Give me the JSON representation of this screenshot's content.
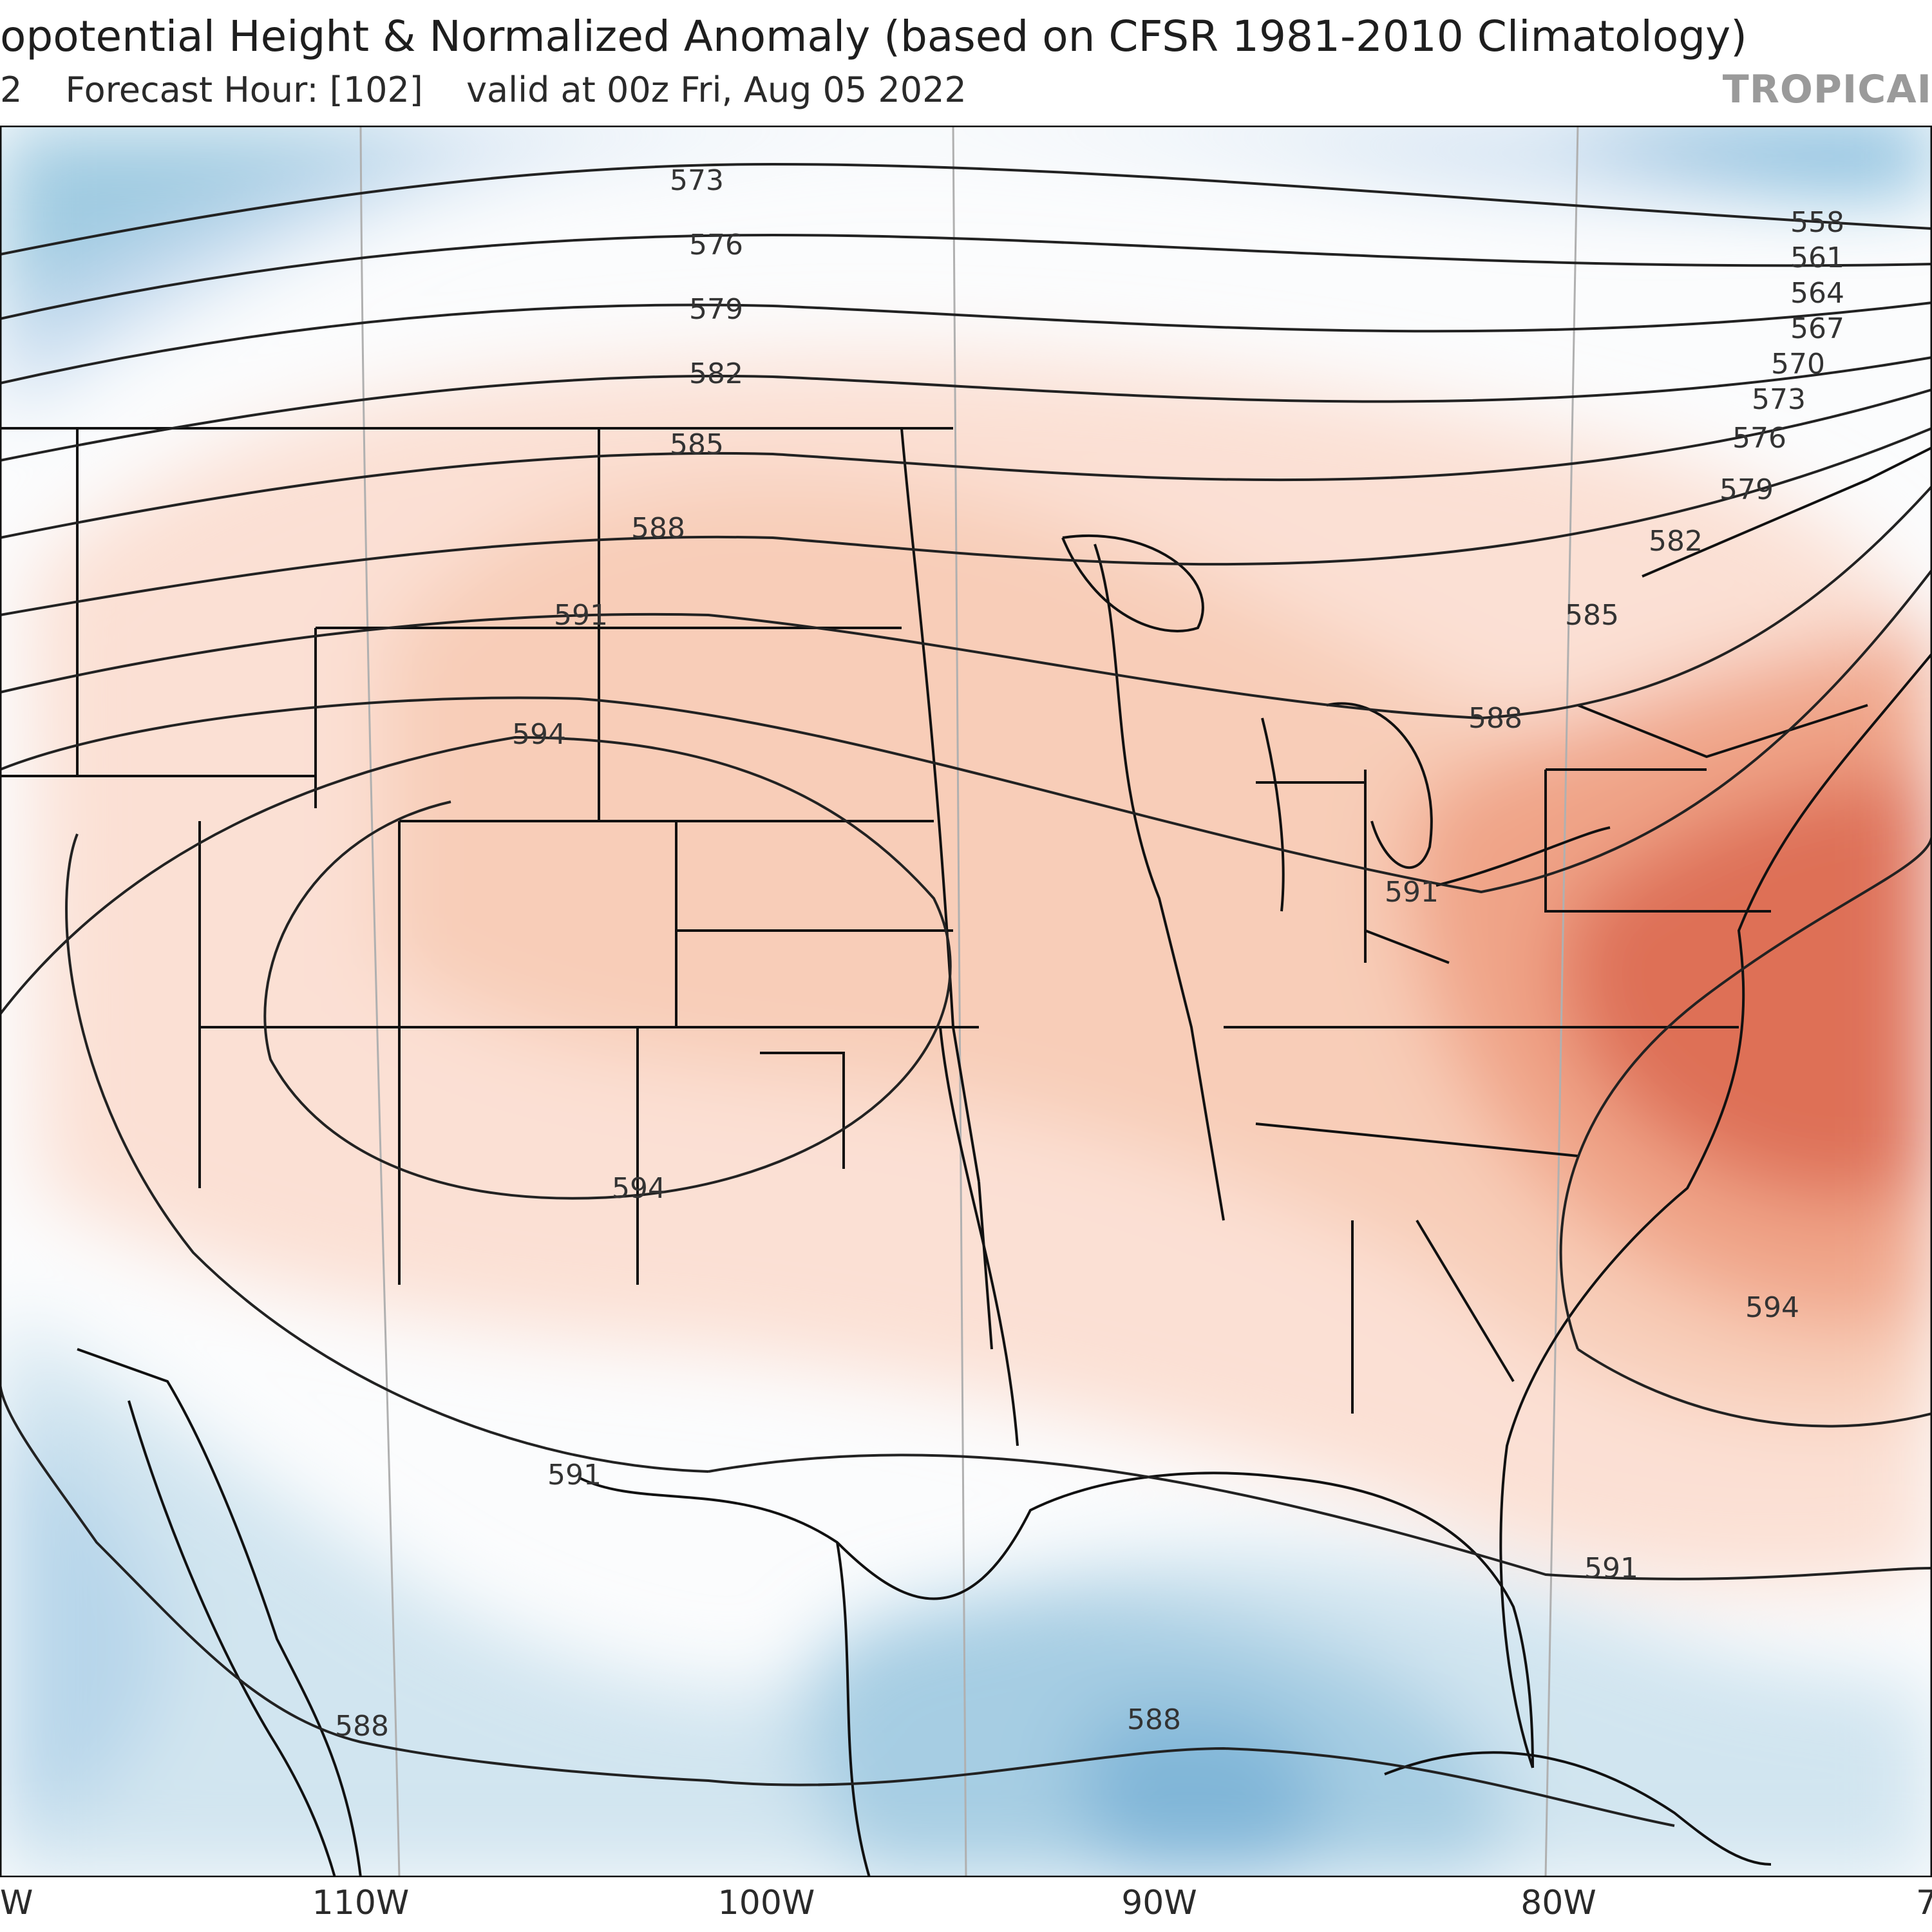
{
  "header": {
    "title": "opotential Height & Normalized Anomaly (based on CFSR 1981-2010 Climatology)",
    "init_fragment": "2",
    "forecast_hour": "Forecast Hour: [102]",
    "valid": "valid at 00z Fri, Aug 05 2022",
    "brand": "TROPICAI"
  },
  "map": {
    "contour_labels": [
      "573",
      "576",
      "579",
      "582",
      "585",
      "588",
      "591",
      "594",
      "594",
      "591",
      "588",
      "558",
      "561",
      "564",
      "567",
      "570",
      "573",
      "576",
      "579",
      "582",
      "585",
      "588",
      "591",
      "594",
      "591",
      "588"
    ],
    "longitude_ticks": [
      "W",
      "110W",
      "100W",
      "90W",
      "80W",
      "7"
    ],
    "colors": {
      "warm_anomaly": "#d6604d",
      "cool_anomaly": "#4393c3",
      "contour": "#222222"
    }
  }
}
